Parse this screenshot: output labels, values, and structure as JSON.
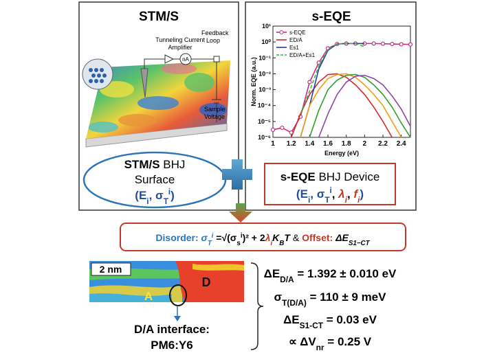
{
  "stm_panel": {
    "title": "STM/S",
    "amplifier_label": [
      "Tunneling Current",
      "Amplifier"
    ],
    "meter": "nA",
    "feedback_label": [
      "Feedback",
      "Loop"
    ],
    "voltage_label": [
      "Sample",
      "Voltage"
    ],
    "caption": {
      "line1": [
        "STM/S",
        " BHJ"
      ],
      "line2": "Surface",
      "line3": [
        "(",
        "E",
        "i",
        ", ",
        "σ",
        "T",
        "i",
        ")"
      ]
    }
  },
  "eqe_panel": {
    "title": "s-EQE",
    "caption": {
      "line1": [
        "s-EQE",
        " BHJ Device"
      ],
      "line2": [
        "(",
        "E",
        "i",
        ", ",
        "σ",
        "T",
        "i",
        ", ",
        "λ",
        "i",
        ", ",
        "f",
        "i",
        ")"
      ]
    }
  },
  "chart_data": {
    "type": "line",
    "x_label": "Energy (eV)",
    "y_label": "Norm. EQE (a.u.)",
    "log_y": true,
    "x": [
      1,
      1.1,
      1.2,
      1.3,
      1.4,
      1.5,
      1.6,
      1.7,
      1.8,
      1.9,
      2,
      2.1,
      2.2,
      2.3,
      2.4,
      2.5
    ],
    "xlim": [
      1,
      2.5
    ],
    "xticks": [
      1,
      1.2,
      1.4,
      1.6,
      1.8,
      2,
      2.2,
      2.4
    ],
    "ylim": [
      1e-06,
      10
    ],
    "yticks": [
      {
        "value": 1e-06,
        "label": "10⁻⁶"
      },
      {
        "value": 1e-05,
        "label": "10⁻⁵"
      },
      {
        "value": 0.0001,
        "label": "10⁻⁴"
      },
      {
        "value": 0.001,
        "label": "10⁻³"
      },
      {
        "value": 0.01,
        "label": "10⁻²"
      },
      {
        "value": 0.1,
        "label": "10⁻¹"
      },
      {
        "value": 1,
        "label": "10⁰"
      },
      {
        "value": 10,
        "label": "10¹"
      }
    ],
    "series": [
      {
        "name": "s-EQE",
        "color": "#c0307f",
        "markers": true,
        "values": [
          3e-06,
          4e-06,
          2e-06,
          2e-05,
          0.003,
          0.05,
          0.4,
          0.75,
          0.8,
          0.8,
          0.8,
          0.8,
          0.78,
          0.75,
          0.72,
          0.7
        ]
      },
      {
        "name": "ED/A",
        "color": "#d62728",
        "values": [
          null,
          null,
          1e-06,
          3e-05,
          0.0005,
          0.003,
          0.009,
          0.01,
          0.006,
          0.002,
          0.0005,
          8e-05,
          1e-05,
          1e-06,
          null,
          null
        ]
      },
      {
        "name": "Es1",
        "color": "#1f3fa0",
        "values": [
          null,
          null,
          null,
          1e-06,
          0.0001,
          0.02,
          0.3,
          0.75,
          0.8,
          0.8,
          0.8,
          null,
          null,
          null,
          null,
          null
        ]
      },
      {
        "name": "ED/A+Es1",
        "color": "#3cb043",
        "dashed": true,
        "values": [
          null,
          null,
          null,
          3e-05,
          0.0008,
          0.03,
          0.35,
          0.76,
          0.8,
          0.8,
          0.5,
          null,
          null,
          null,
          null,
          null
        ]
      },
      {
        "color": "#f39c12",
        "values": [
          null,
          null,
          null,
          1e-06,
          0.0001,
          0.001,
          0.005,
          0.009,
          0.01,
          0.006,
          0.002,
          0.0005,
          0.0001,
          1e-05,
          1e-06,
          null
        ]
      },
      {
        "color": "#2ca02c",
        "values": [
          null,
          null,
          null,
          null,
          1e-06,
          5e-05,
          0.001,
          0.004,
          0.008,
          0.009,
          0.006,
          0.002,
          0.0005,
          8e-05,
          8e-06,
          1e-06
        ]
      },
      {
        "color": "#8e44ad",
        "values": [
          null,
          null,
          null,
          null,
          null,
          1e-06,
          3e-05,
          0.0005,
          0.003,
          0.007,
          0.008,
          0.005,
          0.002,
          0.0004,
          6e-05,
          5e-06
        ]
      }
    ]
  },
  "formula": [
    "Disorder:",
    " σ",
    "T",
    "i",
    " =√",
    "(σ",
    "s",
    "i",
    ")²  +  2",
    "λ",
    "i",
    "K",
    "B",
    "T",
    "  & ",
    "Offset:",
    " ΔE",
    "S1−CT"
  ],
  "image": {
    "scale": "2 nm",
    "acceptor": "A",
    "donor": "D",
    "interface": [
      "D/A interface:",
      "PM6:Y6"
    ]
  },
  "results": [
    [
      "ΔE",
      "D/A",
      " = 1.392 ± 0.010 eV"
    ],
    [
      "σ",
      "T(D/A)",
      " = 110 ± 9 meV"
    ],
    [
      "ΔE",
      "S1-CT",
      " = 0.03 eV"
    ],
    [
      "∝ ΔV",
      "nr",
      " = 0.25 V"
    ]
  ]
}
